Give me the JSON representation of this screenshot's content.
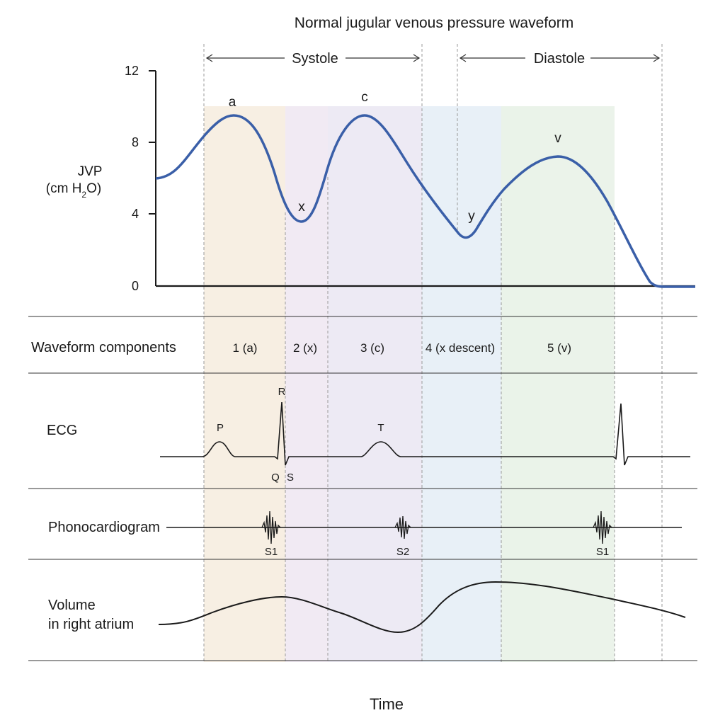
{
  "title": "Normal jugular venous pressure waveform",
  "phases": {
    "systole": "Systole",
    "diastole": "Diastole"
  },
  "y_axis": {
    "label_line1": "JVP",
    "label_line2_prefix": "(cm H",
    "label_line2_sub": "2",
    "label_line2_suffix": "O)",
    "ticks": [
      "12",
      "8",
      "4",
      "0"
    ]
  },
  "peaks": {
    "a": "a",
    "x": "x",
    "c": "c",
    "y": "y",
    "v": "v"
  },
  "rows": {
    "components": "Waveform components",
    "ecg": "ECG",
    "phono": "Phonocardiogram",
    "volume_line1": "Volume",
    "volume_line2": "in right atrium"
  },
  "components": [
    "1 (a)",
    "2 (x)",
    "3 (c)",
    "4 (x descent)",
    "5 (v)"
  ],
  "ecg_labels": {
    "P": "P",
    "R": "R",
    "Q": "Q",
    "S": "S",
    "T": "T"
  },
  "heart_sounds": {
    "s1": "S1",
    "s2": "S2",
    "s1_next": "S1"
  },
  "x_axis_label": "Time",
  "colors": {
    "jvp_curve": "#3a5fa8",
    "band_a": "#f6ecde",
    "band_x": "#efe7f2",
    "band_c": "#ebe7f3",
    "band_x_descent": "#e4eef6",
    "band_v": "#e7f1e6",
    "ink": "#1a1a1a"
  }
}
